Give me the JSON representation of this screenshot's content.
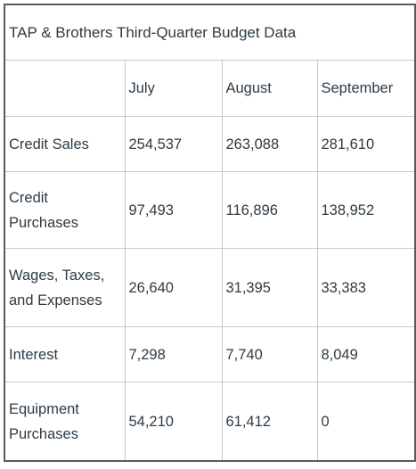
{
  "table": {
    "title": "TAP & Brothers Third-Quarter Budget Data",
    "columns": [
      "",
      "July",
      "August",
      "September"
    ],
    "rows": [
      {
        "label": "Credit Sales",
        "values": [
          "254,537",
          "263,088",
          "281,610"
        ]
      },
      {
        "label": "Credit Purchases",
        "values": [
          "97,493",
          "116,896",
          "138,952"
        ]
      },
      {
        "label": "Wages, Taxes, and Expenses",
        "values": [
          "26,640",
          "31,395",
          "33,383"
        ]
      },
      {
        "label": "Interest",
        "values": [
          "7,298",
          "7,740",
          "8,049"
        ]
      },
      {
        "label": "Equipment Purchases",
        "values": [
          "54,210",
          "61,412",
          "0"
        ]
      }
    ]
  }
}
